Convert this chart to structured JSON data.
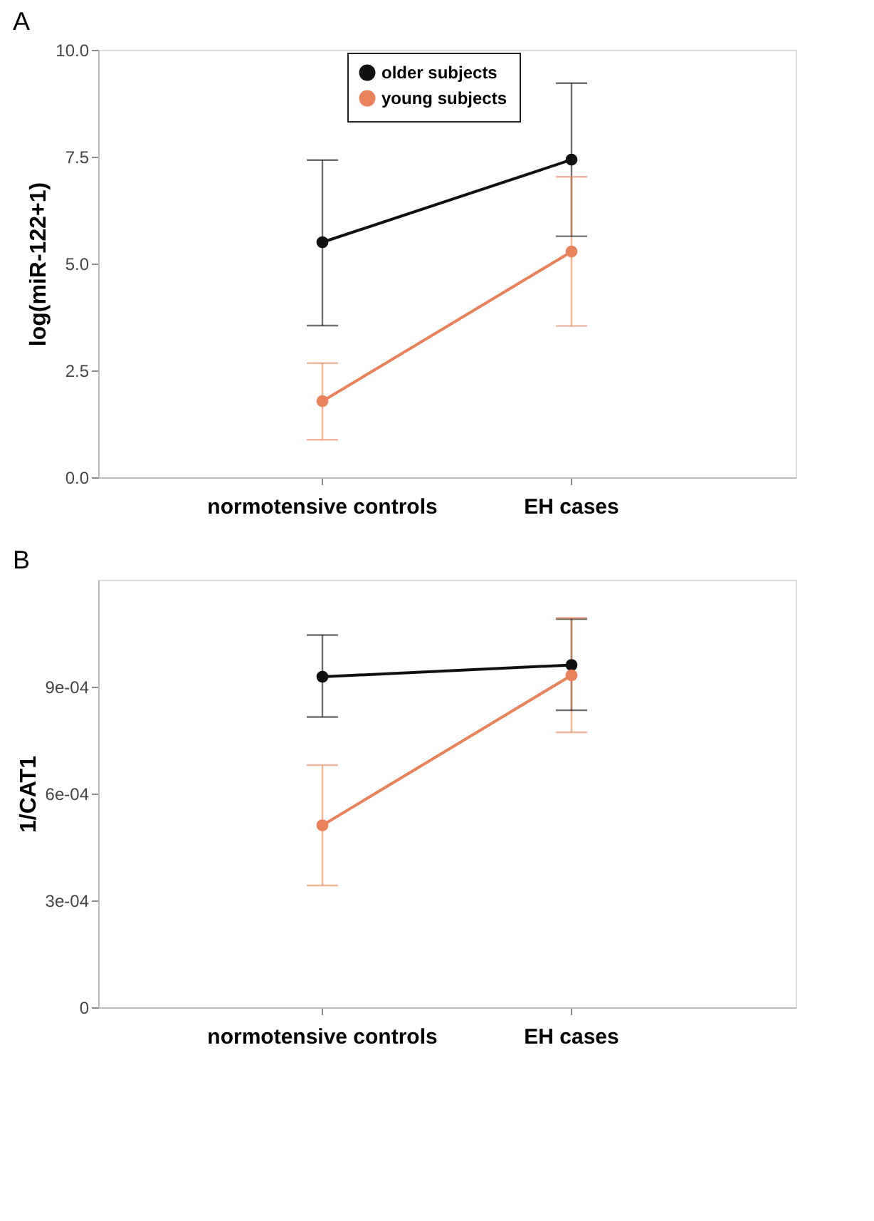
{
  "chart_data": [
    {
      "type": "line",
      "title": "A",
      "ylabel": "log(miR-122+1)",
      "categories": [
        "normotensive controls",
        "EH cases"
      ],
      "ylim": [
        0,
        10
      ],
      "yticks": [
        {
          "value": 0,
          "label": "0.0"
        },
        {
          "value": 2.5,
          "label": "2.5"
        },
        {
          "value": 5,
          "label": "5.0"
        },
        {
          "value": 7.5,
          "label": "7.5"
        },
        {
          "value": 10,
          "label": "10.0"
        }
      ],
      "legend": "top",
      "marker": "circle",
      "line_style": "solid",
      "grid": false,
      "series": [
        {
          "name": "older subjects",
          "color": "#111111",
          "values": [
            5.5,
            7.43
          ],
          "errors": [
            [
              3.55,
              7.42
            ],
            [
              5.64,
              9.22
            ]
          ]
        },
        {
          "name": "young subjects",
          "color": "#e8825a",
          "values": [
            1.78,
            5.28
          ],
          "errors": [
            [
              0.88,
              2.67
            ],
            [
              3.54,
              7.03
            ]
          ]
        }
      ]
    },
    {
      "type": "line",
      "title": "B",
      "ylabel": "1/CAT1",
      "categories": [
        "normotensive controls",
        "EH cases"
      ],
      "ylim": [
        0,
        0.0012
      ],
      "yticks": [
        {
          "value": 0,
          "label": "0"
        },
        {
          "value": 0.0003,
          "label": "3e-04"
        },
        {
          "value": 0.0006,
          "label": "6e-04"
        },
        {
          "value": 0.0009,
          "label": "9e-04"
        }
      ],
      "legend": "top",
      "marker": "circle",
      "line_style": "solid",
      "grid": false,
      "series": [
        {
          "name": "older subjects",
          "color": "#111111",
          "values": [
            0.000928,
            0.000961
          ],
          "errors": [
            [
              0.000815,
              0.001045
            ],
            [
              0.000834,
              0.00109
            ]
          ]
        },
        {
          "name": "young subjects",
          "color": "#e8825a",
          "values": [
            0.000511,
            0.000932
          ],
          "errors": [
            [
              0.000342,
              0.00068
            ],
            [
              0.000772,
              0.001093
            ]
          ]
        }
      ]
    }
  ]
}
